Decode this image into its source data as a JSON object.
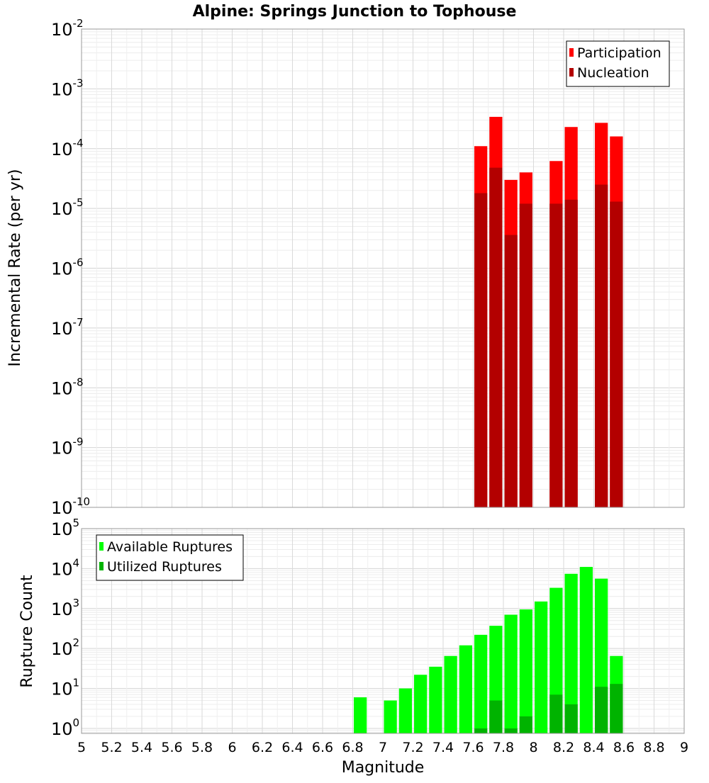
{
  "chart_data": [
    {
      "type": "bar",
      "title": "Alpine: Springs Junction to Tophouse",
      "ylabel": "Incremental Rate (per yr)",
      "xlabel": "",
      "yscale": "log",
      "ylim": [
        1e-10,
        0.01
      ],
      "xlim": [
        5,
        9
      ],
      "grid": true,
      "legend_position": "top-right",
      "x": [
        7.65,
        7.75,
        7.85,
        7.95,
        8.15,
        8.25,
        8.45,
        8.55
      ],
      "series": [
        {
          "name": "Participation",
          "color": "#ff0000",
          "values": [
            0.00011,
            0.00034,
            3e-05,
            4e-05,
            6.2e-05,
            0.00023,
            0.00027,
            0.00016
          ]
        },
        {
          "name": "Nucleation",
          "color": "#b30000",
          "values": [
            1.8e-05,
            4.8e-05,
            3.6e-06,
            1.2e-05,
            1.2e-05,
            1.4e-05,
            2.5e-05,
            1.3e-05
          ]
        }
      ],
      "ytick_exponents": [
        -10,
        -9,
        -8,
        -7,
        -6,
        -5,
        -4,
        -3,
        -2
      ]
    },
    {
      "type": "bar",
      "title": "",
      "ylabel": "Rupture Count",
      "xlabel": "Magnitude",
      "yscale": "log",
      "ylim": [
        0.75,
        100000
      ],
      "xlim": [
        5,
        9
      ],
      "grid": true,
      "legend_position": "top-left",
      "x": [
        6.85,
        7.05,
        7.15,
        7.25,
        7.35,
        7.45,
        7.55,
        7.65,
        7.75,
        7.85,
        7.95,
        8.05,
        8.15,
        8.25,
        8.35,
        8.45,
        8.55
      ],
      "series": [
        {
          "name": "Available Ruptures",
          "color": "#00ff00",
          "values": [
            6,
            5,
            10,
            22,
            35,
            65,
            120,
            220,
            370,
            700,
            950,
            1500,
            3300,
            7400,
            11000,
            5600,
            65
          ]
        },
        {
          "name": "Utilized Ruptures",
          "color": "#00b300",
          "values": [
            0,
            0,
            0,
            0,
            0,
            0,
            0,
            1,
            5,
            1,
            2,
            0,
            7,
            4,
            0,
            11,
            13
          ]
        }
      ],
      "ytick_exponents": [
        0,
        1,
        2,
        3,
        4,
        5
      ],
      "xticks": [
        "5",
        "5.2",
        "5.4",
        "5.6",
        "5.8",
        "6",
        "6.2",
        "6.4",
        "6.6",
        "6.8",
        "7",
        "7.2",
        "7.4",
        "7.6",
        "7.8",
        "8",
        "8.2",
        "8.4",
        "8.6",
        "8.8",
        "9"
      ]
    }
  ]
}
